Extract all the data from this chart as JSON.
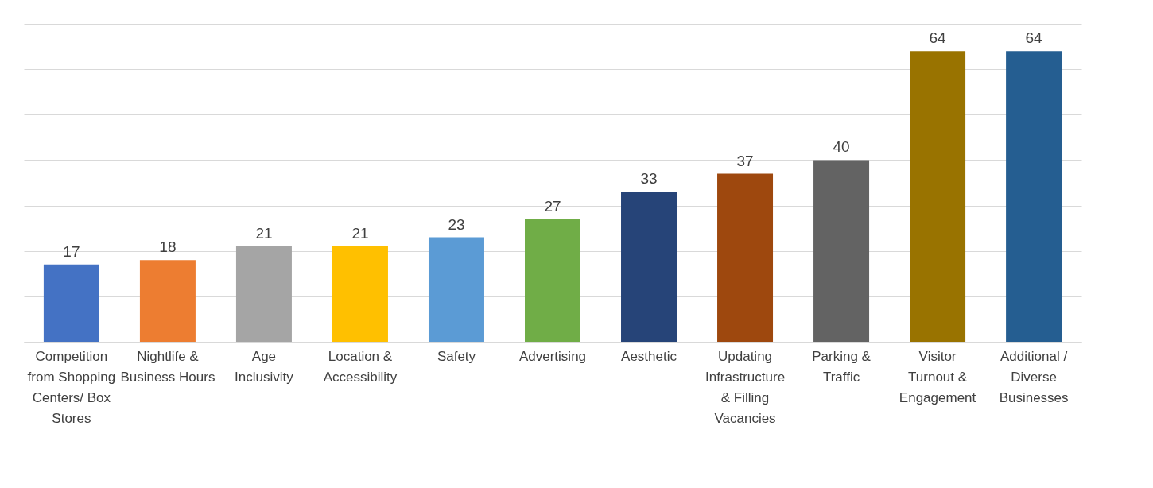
{
  "chart_data": {
    "type": "bar",
    "categories": [
      "Competition from Shopping Centers/ Box Stores",
      "Nightlife & Business Hours",
      "Age Inclusivity",
      "Location & Accessibility",
      "Safety",
      "Advertising",
      "Aesthetic",
      "Updating Infrastructure & Filling Vacancies",
      "Parking & Traffic",
      "Visitor Turnout & Engagement",
      "Additional / Diverse Businesses"
    ],
    "values": [
      17,
      18,
      21,
      21,
      23,
      27,
      33,
      37,
      40,
      64,
      64
    ],
    "colors": [
      "#4472c4",
      "#ed7d31",
      "#a5a5a5",
      "#ffc000",
      "#5b9bd5",
      "#70ad47",
      "#264478",
      "#9e480e",
      "#636363",
      "#997300",
      "#255e91"
    ],
    "ylim": [
      0,
      70
    ],
    "yticks": [
      {
        "value": 0,
        "label": null
      },
      {
        "value": 10,
        "label": null
      },
      {
        "value": 20,
        "label": null
      },
      {
        "value": 30,
        "label": null
      },
      {
        "value": 40,
        "label": null
      },
      {
        "value": 50,
        "label": null
      },
      {
        "value": 60,
        "label": null
      },
      {
        "value": 70,
        "label": null
      }
    ],
    "tick_labels": "x",
    "grid": "y",
    "data_labels": true
  }
}
